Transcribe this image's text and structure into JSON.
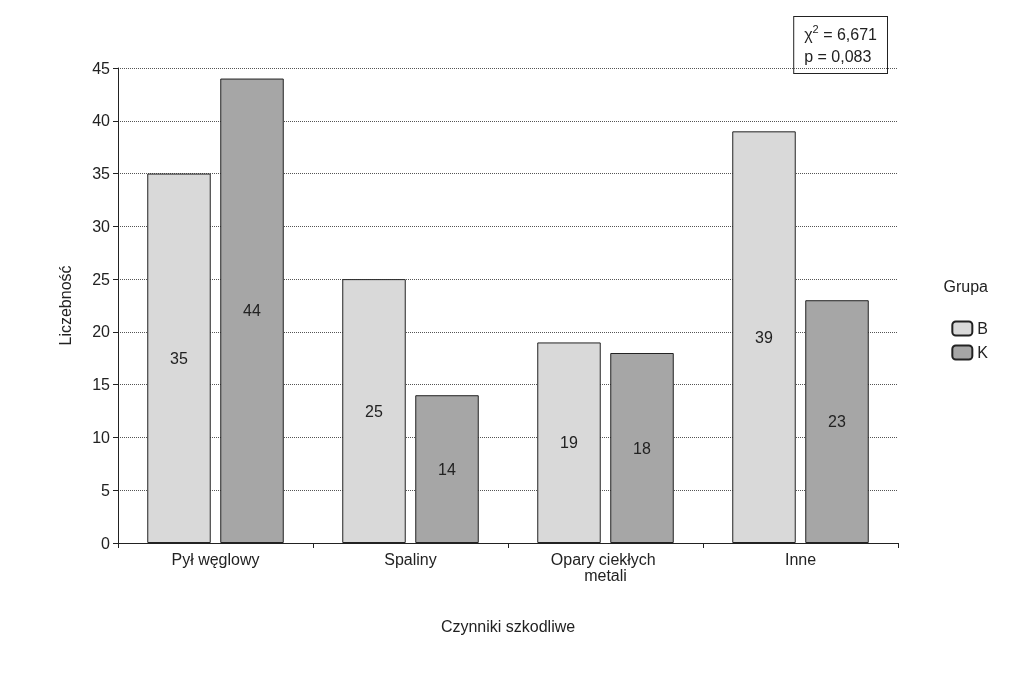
{
  "chart_data": {
    "type": "bar",
    "xlabel": "Czynniki szkodliwe",
    "ylabel": "Liczebność",
    "legend_title": "Grupa",
    "categories": [
      "Pył węglowy",
      "Spaliny",
      "Opary ciekłych metali",
      "Inne"
    ],
    "series": [
      {
        "name": "B",
        "color": "#d9d9d9",
        "values": [
          35,
          25,
          19,
          39
        ]
      },
      {
        "name": "K",
        "color": "#a6a6a6",
        "values": [
          44,
          14,
          18,
          23
        ]
      }
    ],
    "ylim": [
      0,
      45
    ],
    "yticks": [
      0,
      5,
      10,
      15,
      20,
      25,
      30,
      35,
      40,
      45
    ],
    "grid": "y",
    "legend": "right",
    "data_labels": true,
    "annotations": [
      "χ$^{2}$ = 6,671",
      "p = 0,083"
    ]
  }
}
